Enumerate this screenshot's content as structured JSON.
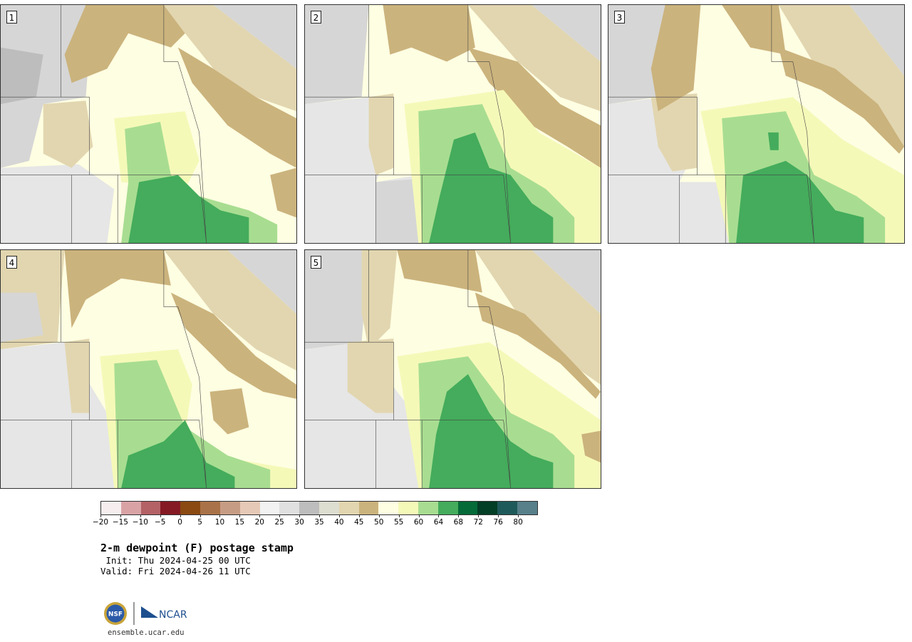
{
  "panels": [
    {
      "label": "1"
    },
    {
      "label": "2"
    },
    {
      "label": "3"
    },
    {
      "label": "4"
    },
    {
      "label": "5"
    }
  ],
  "legend": {
    "colors": [
      "#f6eeee",
      "#d9a3a6",
      "#b46266",
      "#861a24",
      "#8a4a12",
      "#aa7248",
      "#c79c84",
      "#e6c9b7",
      "#f2f2f2",
      "#e0e0e0",
      "#bdbdbd",
      "#ddddd0",
      "#e2d6b0",
      "#cbb37d",
      "#fefee2",
      "#f5f9b8",
      "#a8dd91",
      "#44ac5c",
      "#056b39",
      "#033e26",
      "#1f5a5a",
      "#57808a"
    ],
    "ticks": [
      "−20",
      "−15",
      "−10",
      "−5",
      "0",
      "5",
      "10",
      "15",
      "20",
      "25",
      "30",
      "35",
      "40",
      "45",
      "50",
      "55",
      "60",
      "64",
      "68",
      "72",
      "76",
      "80"
    ]
  },
  "title": "2-m dewpoint (F) postage stamp",
  "init_text": " Init: Thu 2024-04-25 00 UTC",
  "valid_text": "Valid: Fri 2024-04-26 11 UTC",
  "logo_text": "NCAR",
  "nsf_text": "NSF",
  "site": "ensemble.ucar.edu",
  "map_colors": {
    "moist_light": "#fefee2",
    "moist_yellow": "#f5f9b8",
    "green_light": "#a8dd91",
    "green": "#44ac5c",
    "tan": "#cbb37d",
    "tan_light": "#e2d6b0",
    "grey_light": "#e6e6e6",
    "grey": "#d6d6d6",
    "grey_dark": "#bdbdbd",
    "pink": "#e0c4b6"
  }
}
